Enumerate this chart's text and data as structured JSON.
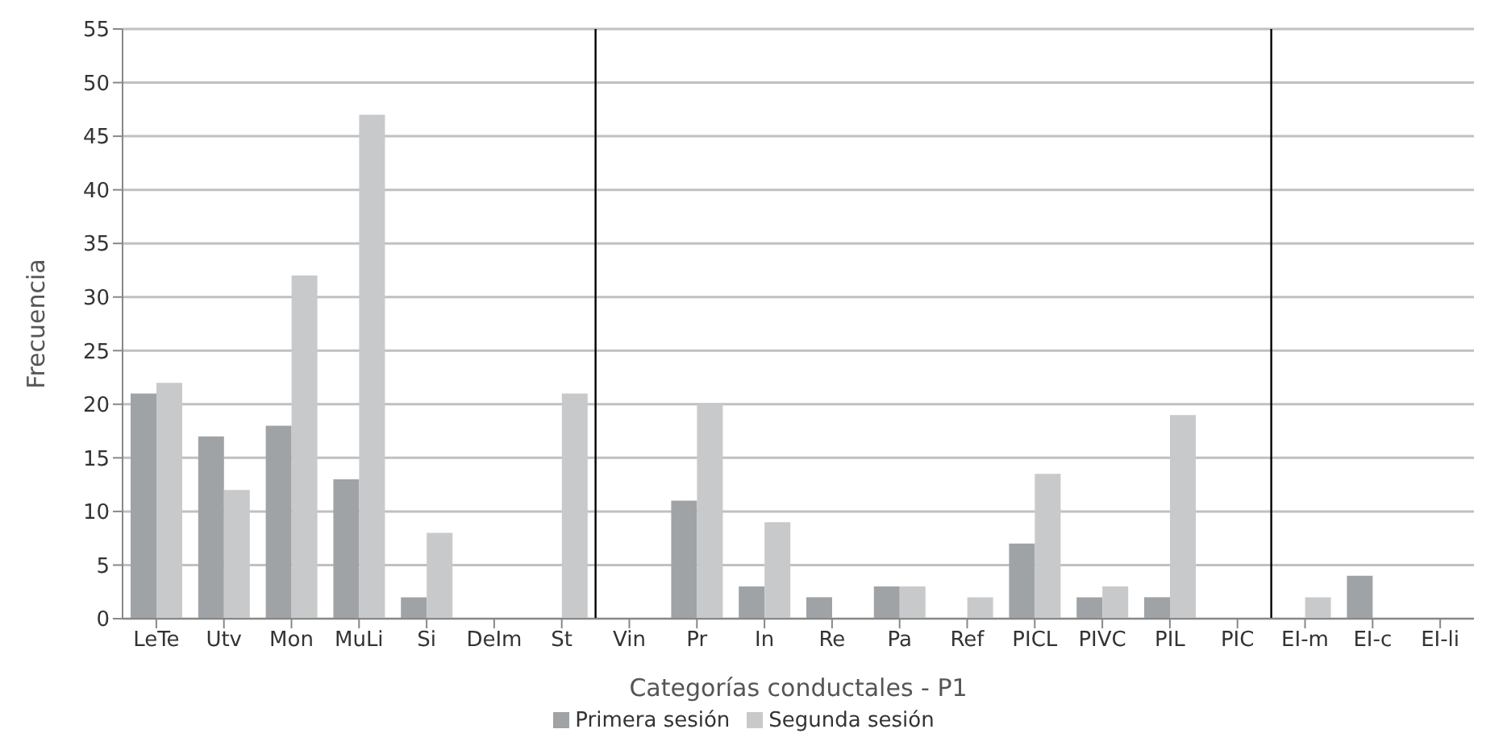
{
  "chart_data": {
    "type": "bar",
    "xlabel": "Categorías conductales  -  P1",
    "ylabel": "Frecuencia",
    "categories": [
      "LeTe",
      "Utv",
      "Mon",
      "MuLi",
      "Si",
      "DeIm",
      "St",
      "Vin",
      "Pr",
      "In",
      "Re",
      "Pa",
      "Ref",
      "PICL",
      "PIVC",
      "PIL",
      "PIC",
      "EI-m",
      "EI-c",
      "EI-li"
    ],
    "series": [
      {
        "name": "Primera sesión",
        "color": "#a0a3a6",
        "values": [
          21,
          17,
          18,
          13,
          2,
          0,
          0,
          0,
          11,
          3,
          2,
          3,
          0,
          7,
          2,
          2,
          0,
          0,
          4,
          0
        ]
      },
      {
        "name": "Segunda sesión",
        "color": "#c8c9cb",
        "values": [
          22,
          12,
          32,
          47,
          8,
          0,
          21,
          0,
          20,
          9,
          0,
          3,
          2,
          13.5,
          3,
          19,
          0,
          2,
          0,
          0
        ]
      }
    ],
    "ylim": [
      0,
      55
    ],
    "yticks": [
      0,
      5,
      10,
      15,
      20,
      25,
      30,
      35,
      40,
      45,
      50,
      55
    ],
    "grid": "y",
    "legend": "bottom"
  }
}
